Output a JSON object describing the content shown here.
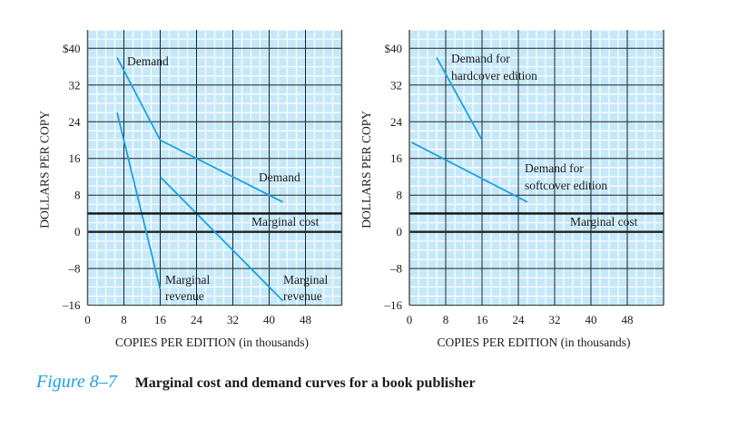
{
  "chart_data": [
    {
      "type": "line",
      "xlabel": "COPIES PER EDITION (in thousands)",
      "ylabel": "DOLLARS PER COPY",
      "xlim": [
        0,
        56
      ],
      "ylim": [
        -16,
        44
      ],
      "x_ticks": [
        "0",
        "8",
        "16",
        "24",
        "32",
        "40",
        "48"
      ],
      "y_ticks": [
        "$40",
        "32",
        "24",
        "16",
        "8",
        "0",
        "–8",
        "–16"
      ],
      "grid": true,
      "series": [
        {
          "label": "Demand",
          "points": [
            [
              6.5,
              38
            ],
            [
              16,
              20
            ],
            [
              43,
              6.5
            ]
          ],
          "color": "#1ba1e2"
        },
        {
          "label": "Marginal revenue",
          "points": [
            [
              6.5,
              26
            ],
            [
              16,
              -12.5
            ]
          ],
          "color": "#1ba1e2"
        },
        {
          "label": "Marginal revenue",
          "points": [
            [
              16,
              12
            ],
            [
              43,
              -15
            ]
          ],
          "color": "#1ba1e2"
        },
        {
          "label": "Marginal cost",
          "points": [
            [
              0,
              4
            ],
            [
              56,
              4
            ]
          ],
          "color": "#111111"
        }
      ],
      "annotations": [
        "Demand",
        "Demand",
        "Marginal cost",
        "Marginal",
        "revenue",
        "Marginal",
        "revenue"
      ]
    },
    {
      "type": "line",
      "xlabel": "COPIES PER EDITION (in thousands)",
      "ylabel": "DOLLARS PER COPY",
      "xlim": [
        0,
        56
      ],
      "ylim": [
        -16,
        44
      ],
      "x_ticks": [
        "0",
        "8",
        "16",
        "24",
        "32",
        "40",
        "48"
      ],
      "y_ticks": [
        "$40",
        "32",
        "24",
        "16",
        "8",
        "0",
        "–8",
        "–16"
      ],
      "grid": true,
      "series": [
        {
          "label": "Demand for hardcover edition",
          "points": [
            [
              6,
              38
            ],
            [
              16,
              20
            ]
          ],
          "color": "#1ba1e2"
        },
        {
          "label": "Demand for softcover edition",
          "points": [
            [
              0.5,
              19.5
            ],
            [
              26,
              6.5
            ]
          ],
          "color": "#1ba1e2"
        },
        {
          "label": "Marginal cost",
          "points": [
            [
              0,
              4
            ],
            [
              56,
              4
            ]
          ],
          "color": "#111111"
        }
      ],
      "annotations": [
        "Demand for",
        "hardcover edition",
        "Demand for",
        "softcover edition",
        "Marginal cost"
      ]
    }
  ],
  "caption": {
    "figure_number": "Figure 8–7",
    "title": "Marginal cost and demand curves for a book publisher"
  },
  "colors": {
    "plot_background": "#c6e9fa",
    "curve": "#1ba1e2",
    "caption_accent": "#1ba1e2"
  }
}
